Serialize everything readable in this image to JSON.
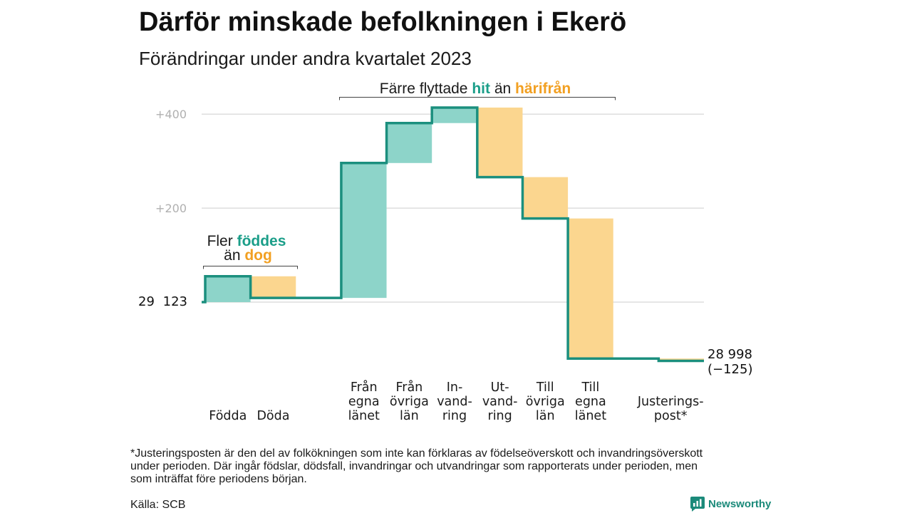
{
  "chart_data": {
    "type": "bar",
    "variant": "waterfall",
    "title": "Därför minskade befolkningen i Ekerö",
    "subtitle": "Förändringar under andra kvartalet 2023",
    "start": {
      "value": 29123,
      "label": "29 123"
    },
    "end": {
      "value": 28998,
      "label": "28 998",
      "change_label": "(−125)"
    },
    "ylim": [
      -150,
      420
    ],
    "yticks": [
      {
        "value": 400,
        "label": "+400"
      },
      {
        "value": 200,
        "label": "+200"
      }
    ],
    "grid": true,
    "categories": [
      {
        "lines": [
          "Födda"
        ],
        "value": 55
      },
      {
        "lines": [
          "Döda"
        ],
        "value": -46
      },
      {
        "lines": [
          "Från",
          "egna",
          "länet"
        ],
        "value": 287
      },
      {
        "lines": [
          "Från",
          "övriga",
          "län"
        ],
        "value": 85
      },
      {
        "lines": [
          "In-",
          "vand-",
          "ring"
        ],
        "value": 33
      },
      {
        "lines": [
          "Ut-",
          "vand-",
          "ring"
        ],
        "value": -148
      },
      {
        "lines": [
          "Till",
          "övriga",
          "län"
        ],
        "value": -88
      },
      {
        "lines": [
          "Till",
          "egna",
          "länet"
        ],
        "value": -298
      },
      {
        "lines": [
          "Justerings-",
          "post*"
        ],
        "value": -5
      }
    ],
    "annotations": {
      "migration": {
        "before": "Färre flyttade",
        "highlight_in": "hit",
        "between": "än",
        "highlight_out": "härifrån"
      },
      "natural": {
        "before": "Fler",
        "highlight_born": "föddes",
        "between": "än",
        "highlight_died": "dog"
      }
    }
  },
  "colors": {
    "increase_fill": "#8dd4c9",
    "decrease_fill": "#fbd68f",
    "step_line": "#1b8f7e",
    "accent_teal": "#1b9e89",
    "accent_orange": "#f2a022",
    "grid": "#dedede",
    "tick_label": "#b0b0b0",
    "bracket": "#444444",
    "logo": "#1b8a7a"
  },
  "footnote_lines": [
    "*Justeringsposten är den del av folkökningen som inte kan förklaras av födelseöverskott och invandringsöverskott",
    "under perioden. Där ingår födslar, dödsfall, invandringar och utvandringar som rapporterats under perioden, men",
    "som inträffat före periodens början."
  ],
  "source": "Källa: SCB",
  "logo": {
    "text": "Newsworthy",
    "icon": "newsworthy-chart-bubble-icon"
  }
}
